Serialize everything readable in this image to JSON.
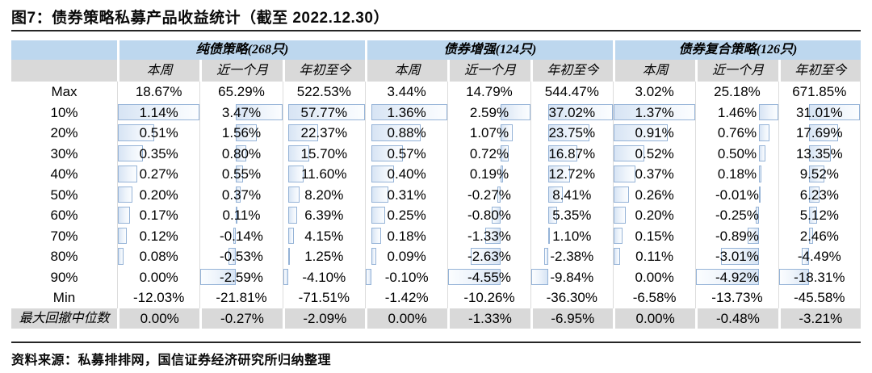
{
  "figure": {
    "title": "图7：债券策略私募产品收益统计（截至 2022.12.30）",
    "source": "资料来源：私募排排网，国信证券经济研究所归纳整理"
  },
  "colors": {
    "group_header_bg": "#bdd7ee",
    "subheader_bg": "#d9d9d9",
    "median_row_bg": "#d9d9d9",
    "bar_border": "#95b3d7",
    "bar_fill": "#d7e4f4",
    "gridline": "#dcdcdc",
    "rule": "#262626"
  },
  "chart_data": {
    "type": "table",
    "title": "图7：债券策略私募产品收益统计（截至 2022.12.30）",
    "unit": "%",
    "column_groups": [
      "纯债策略(268只)",
      "债券增强(124只)",
      "债券复合策略(126只)"
    ],
    "sub_columns": [
      "本周",
      "近一个月",
      "年初至今"
    ],
    "note": "rows 10%-90% display Excel-style in-cell data bars scaled per column (automatic axis)",
    "rows": [
      {
        "label": "Max",
        "bars": false,
        "shaded": false,
        "values": [
          18.67,
          65.29,
          522.53,
          3.44,
          14.79,
          544.47,
          3.02,
          25.18,
          671.85
        ]
      },
      {
        "label": "10%",
        "bars": true,
        "shaded": false,
        "values": [
          1.14,
          3.47,
          57.77,
          1.36,
          2.59,
          37.02,
          1.37,
          1.46,
          31.01
        ]
      },
      {
        "label": "20%",
        "bars": true,
        "shaded": false,
        "values": [
          0.51,
          1.56,
          22.37,
          0.88,
          1.07,
          23.75,
          0.91,
          0.76,
          17.69
        ]
      },
      {
        "label": "30%",
        "bars": true,
        "shaded": false,
        "values": [
          0.35,
          0.8,
          15.7,
          0.57,
          0.72,
          16.87,
          0.52,
          0.5,
          13.35
        ]
      },
      {
        "label": "40%",
        "bars": true,
        "shaded": false,
        "values": [
          0.27,
          0.55,
          11.6,
          0.4,
          0.19,
          12.72,
          0.37,
          0.18,
          9.52
        ]
      },
      {
        "label": "50%",
        "bars": true,
        "shaded": false,
        "values": [
          0.2,
          0.37,
          8.2,
          0.31,
          -0.27,
          8.41,
          0.26,
          -0.01,
          6.23
        ]
      },
      {
        "label": "60%",
        "bars": true,
        "shaded": false,
        "values": [
          0.17,
          0.11,
          6.39,
          0.25,
          -0.8,
          5.35,
          0.2,
          -0.25,
          5.12
        ]
      },
      {
        "label": "70%",
        "bars": true,
        "shaded": false,
        "values": [
          0.12,
          -0.14,
          4.15,
          0.18,
          -1.33,
          1.1,
          0.15,
          -0.89,
          2.46
        ]
      },
      {
        "label": "80%",
        "bars": true,
        "shaded": false,
        "values": [
          0.08,
          -0.53,
          1.25,
          0.09,
          -2.63,
          -2.38,
          0.11,
          -3.01,
          -4.49
        ]
      },
      {
        "label": "90%",
        "bars": true,
        "shaded": false,
        "values": [
          0.0,
          -2.59,
          -4.1,
          -0.1,
          -4.55,
          -9.84,
          0.0,
          -4.92,
          -18.31
        ]
      },
      {
        "label": "Min",
        "bars": false,
        "shaded": false,
        "values": [
          -12.03,
          -21.81,
          -71.51,
          -1.42,
          -10.26,
          -36.3,
          -6.58,
          -13.73,
          -45.58
        ]
      },
      {
        "label": "最大回撤中位数",
        "bars": false,
        "shaded": true,
        "values": [
          0.0,
          -0.27,
          -2.09,
          0.0,
          -1.33,
          -6.95,
          0.0,
          -0.48,
          -3.21
        ]
      }
    ]
  }
}
